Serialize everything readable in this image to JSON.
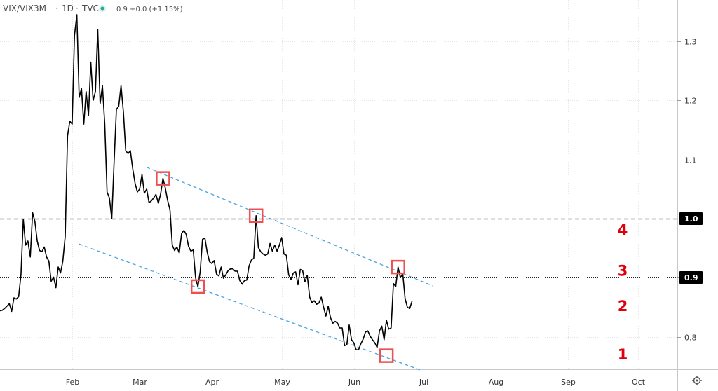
{
  "header": {
    "symbol": "VIX/VIX3M",
    "sep1": "·",
    "interval": "1D",
    "sep2": "·",
    "source": "TVC",
    "values": "0.9  +0.0 (+1.15%)",
    "status_color": "#26a69a"
  },
  "chart_data": {
    "type": "line",
    "title": "VIX/VIX3M · 1D · TVC",
    "xlabel": "",
    "ylabel": "",
    "x_axis_labels": [
      "Feb",
      "Mar",
      "Apr",
      "May",
      "Jun",
      "Jul",
      "Aug",
      "Sep",
      "Oct"
    ],
    "x_axis_dates": [
      "2020-02-01",
      "2020-03-01",
      "2020-04-01",
      "2020-05-01",
      "2020-06-01",
      "2020-07-01",
      "2020-08-01",
      "2020-09-01",
      "2020-10-01"
    ],
    "y_axis_labels": [
      "0.8",
      "0.9",
      "1.0",
      "1.1",
      "1.2",
      "1.3"
    ],
    "ylim": [
      0.745,
      1.37
    ],
    "grid": true,
    "line_color": "#000000",
    "series": [
      {
        "values": [
          [
            "2020-01-01",
            0.844
          ],
          [
            "2020-01-02",
            0.845
          ],
          [
            "2020-01-03",
            0.848
          ],
          [
            "2020-01-04",
            0.852
          ],
          [
            "2020-01-05",
            0.856
          ],
          [
            "2020-01-06",
            0.843
          ],
          [
            "2020-01-07",
            0.866
          ],
          [
            "2020-01-08",
            0.864
          ],
          [
            "2020-01-09",
            0.868
          ],
          [
            "2020-01-10",
            0.905
          ],
          [
            "2020-01-11",
            0.999
          ],
          [
            "2020-01-12",
            0.955
          ],
          [
            "2020-01-13",
            0.962
          ],
          [
            "2020-01-14",
            0.935
          ],
          [
            "2020-01-15",
            1.01
          ],
          [
            "2020-01-16",
            0.995
          ],
          [
            "2020-01-17",
            0.962
          ],
          [
            "2020-01-18",
            0.946
          ],
          [
            "2020-01-19",
            0.944
          ],
          [
            "2020-01-20",
            0.952
          ],
          [
            "2020-01-21",
            0.935
          ],
          [
            "2020-01-22",
            0.928
          ],
          [
            "2020-01-23",
            0.894
          ],
          [
            "2020-01-24",
            0.901
          ],
          [
            "2020-01-25",
            0.883
          ],
          [
            "2020-01-26",
            0.918
          ],
          [
            "2020-01-27",
            0.908
          ],
          [
            "2020-01-28",
            0.928
          ],
          [
            "2020-01-29",
            0.97
          ],
          [
            "2020-01-30",
            1.14
          ],
          [
            "2020-01-31",
            1.165
          ],
          [
            "2020-02-01",
            1.16
          ],
          [
            "2020-02-02",
            1.31
          ],
          [
            "2020-02-03",
            1.345
          ],
          [
            "2020-02-04",
            1.205
          ],
          [
            "2020-02-05",
            1.22
          ],
          [
            "2020-02-06",
            1.16
          ],
          [
            "2020-02-07",
            1.215
          ],
          [
            "2020-02-08",
            1.175
          ],
          [
            "2020-02-09",
            1.265
          ],
          [
            "2020-02-10",
            1.2
          ],
          [
            "2020-02-11",
            1.215
          ],
          [
            "2020-02-12",
            1.32
          ],
          [
            "2020-02-13",
            1.195
          ],
          [
            "2020-02-14",
            1.225
          ],
          [
            "2020-02-15",
            1.16
          ],
          [
            "2020-02-16",
            1.045
          ],
          [
            "2020-02-17",
            1.035
          ],
          [
            "2020-02-18",
            1.0
          ],
          [
            "2020-02-19",
            1.095
          ],
          [
            "2020-02-20",
            1.185
          ],
          [
            "2020-02-21",
            1.19
          ],
          [
            "2020-02-22",
            1.225
          ],
          [
            "2020-02-23",
            1.18
          ],
          [
            "2020-02-24",
            1.115
          ],
          [
            "2020-02-25",
            1.11
          ],
          [
            "2020-02-26",
            1.115
          ],
          [
            "2020-02-27",
            1.085
          ],
          [
            "2020-02-28",
            1.06
          ],
          [
            "2020-02-29",
            1.045
          ],
          [
            "2020-03-01",
            1.05
          ],
          [
            "2020-03-02",
            1.075
          ],
          [
            "2020-03-03",
            1.043
          ],
          [
            "2020-03-04",
            1.05
          ],
          [
            "2020-03-05",
            1.027
          ],
          [
            "2020-03-06",
            1.03
          ],
          [
            "2020-03-07",
            1.035
          ],
          [
            "2020-03-08",
            1.041
          ],
          [
            "2020-03-09",
            1.026
          ],
          [
            "2020-03-10",
            1.042
          ],
          [
            "2020-03-11",
            1.068
          ],
          [
            "2020-03-12",
            1.052
          ],
          [
            "2020-03-13",
            1.031
          ],
          [
            "2020-03-14",
            1.015
          ],
          [
            "2020-03-15",
            0.955
          ],
          [
            "2020-03-16",
            0.946
          ],
          [
            "2020-03-17",
            0.952
          ],
          [
            "2020-03-18",
            0.942
          ],
          [
            "2020-03-19",
            0.975
          ],
          [
            "2020-03-20",
            0.98
          ],
          [
            "2020-03-21",
            0.973
          ],
          [
            "2020-03-22",
            0.953
          ],
          [
            "2020-03-23",
            0.945
          ],
          [
            "2020-03-24",
            0.947
          ],
          [
            "2020-03-25",
            0.9
          ],
          [
            "2020-03-26",
            0.885
          ],
          [
            "2020-03-27",
            0.91
          ],
          [
            "2020-03-28",
            0.965
          ],
          [
            "2020-03-29",
            0.967
          ],
          [
            "2020-03-30",
            0.943
          ],
          [
            "2020-03-31",
            0.927
          ],
          [
            "2020-04-01",
            0.924
          ],
          [
            "2020-04-02",
            0.929
          ],
          [
            "2020-04-03",
            0.906
          ],
          [
            "2020-04-04",
            0.903
          ],
          [
            "2020-04-05",
            0.918
          ],
          [
            "2020-04-06",
            0.899
          ],
          [
            "2020-04-07",
            0.905
          ],
          [
            "2020-04-08",
            0.912
          ],
          [
            "2020-04-09",
            0.915
          ],
          [
            "2020-04-10",
            0.915
          ],
          [
            "2020-04-11",
            0.911
          ],
          [
            "2020-04-12",
            0.911
          ],
          [
            "2020-04-13",
            0.895
          ],
          [
            "2020-04-14",
            0.889
          ],
          [
            "2020-04-15",
            0.895
          ],
          [
            "2020-04-16",
            0.896
          ],
          [
            "2020-04-17",
            0.92
          ],
          [
            "2020-04-18",
            0.93
          ],
          [
            "2020-04-19",
            0.933
          ],
          [
            "2020-04-20",
            1.005
          ],
          [
            "2020-04-21",
            0.951
          ],
          [
            "2020-04-22",
            0.944
          ],
          [
            "2020-04-23",
            0.94
          ],
          [
            "2020-04-24",
            0.938
          ],
          [
            "2020-04-25",
            0.94
          ],
          [
            "2020-04-26",
            0.958
          ],
          [
            "2020-04-27",
            0.945
          ],
          [
            "2020-04-28",
            0.955
          ],
          [
            "2020-04-29",
            0.945
          ],
          [
            "2020-04-30",
            0.955
          ],
          [
            "2020-05-01",
            0.968
          ],
          [
            "2020-05-02",
            0.94
          ],
          [
            "2020-05-03",
            0.938
          ],
          [
            "2020-05-04",
            0.905
          ],
          [
            "2020-05-05",
            0.897
          ],
          [
            "2020-05-06",
            0.908
          ],
          [
            "2020-05-07",
            0.91
          ],
          [
            "2020-05-08",
            0.888
          ],
          [
            "2020-05-09",
            0.914
          ],
          [
            "2020-05-10",
            0.912
          ],
          [
            "2020-05-11",
            0.893
          ],
          [
            "2020-05-12",
            0.904
          ],
          [
            "2020-05-13",
            0.867
          ],
          [
            "2020-05-14",
            0.858
          ],
          [
            "2020-05-15",
            0.861
          ],
          [
            "2020-05-16",
            0.855
          ],
          [
            "2020-05-17",
            0.857
          ],
          [
            "2020-05-18",
            0.867
          ],
          [
            "2020-05-19",
            0.85
          ],
          [
            "2020-05-20",
            0.835
          ],
          [
            "2020-05-21",
            0.852
          ],
          [
            "2020-05-22",
            0.832
          ],
          [
            "2020-05-23",
            0.823
          ],
          [
            "2020-05-24",
            0.826
          ],
          [
            "2020-05-25",
            0.823
          ],
          [
            "2020-05-26",
            0.815
          ],
          [
            "2020-05-27",
            0.815
          ],
          [
            "2020-05-28",
            0.785
          ],
          [
            "2020-05-29",
            0.787
          ],
          [
            "2020-05-30",
            0.82
          ],
          [
            "2020-05-31",
            0.795
          ],
          [
            "2020-06-01",
            0.79
          ],
          [
            "2020-06-02",
            0.778
          ],
          [
            "2020-06-03",
            0.778
          ],
          [
            "2020-06-04",
            0.788
          ],
          [
            "2020-06-05",
            0.796
          ],
          [
            "2020-06-06",
            0.808
          ],
          [
            "2020-06-07",
            0.81
          ],
          [
            "2020-06-08",
            0.801
          ],
          [
            "2020-06-09",
            0.795
          ],
          [
            "2020-06-10",
            0.79
          ],
          [
            "2020-06-11",
            0.782
          ],
          [
            "2020-06-12",
            0.81
          ],
          [
            "2020-06-13",
            0.818
          ],
          [
            "2020-06-14",
            0.795
          ],
          [
            "2020-06-15",
            0.828
          ],
          [
            "2020-06-16",
            0.813
          ],
          [
            "2020-06-17",
            0.815
          ],
          [
            "2020-06-18",
            0.89
          ],
          [
            "2020-06-19",
            0.885
          ],
          [
            "2020-06-20",
            0.918
          ],
          [
            "2020-06-21",
            0.9
          ],
          [
            "2020-06-22",
            0.907
          ],
          [
            "2020-06-23",
            0.865
          ],
          [
            "2020-06-24",
            0.85
          ],
          [
            "2020-06-25",
            0.848
          ],
          [
            "2020-06-26",
            0.86
          ]
        ]
      }
    ],
    "last_value": {
      "value": 0.9,
      "label": "0.9"
    },
    "hlines": [
      {
        "y": 1.0,
        "style": "dashed",
        "color": "#000000",
        "tag": "1.0"
      }
    ],
    "trendlines": [
      {
        "from": [
          "2020-03-04",
          1.087
        ],
        "to": [
          "2020-07-05",
          0.886
        ],
        "color": "#4aa3df",
        "style": "dashed"
      },
      {
        "from": [
          "2020-02-04",
          0.957
        ],
        "to": [
          "2020-06-30",
          0.743
        ],
        "color": "#4aa3df",
        "style": "dashed"
      }
    ],
    "markers": [
      {
        "x": "2020-03-11",
        "y": 1.068,
        "color": "#ef4f4f"
      },
      {
        "x": "2020-04-20",
        "y": 1.005,
        "color": "#ef4f4f"
      },
      {
        "x": "2020-03-26",
        "y": 0.885,
        "color": "#ef4f4f"
      },
      {
        "x": "2020-06-20",
        "y": 0.918,
        "color": "#ef4f4f"
      },
      {
        "x": "2020-06-15",
        "y": 0.768,
        "color": "#ef4f4f"
      }
    ],
    "annotations": [
      {
        "text": "4",
        "y": 0.982,
        "color": "#e0000d"
      },
      {
        "text": "3",
        "y": 0.913,
        "color": "#e0000d"
      },
      {
        "text": "2",
        "y": 0.853,
        "color": "#e0000d"
      },
      {
        "text": "1",
        "y": 0.771,
        "color": "#e0000d"
      }
    ]
  }
}
